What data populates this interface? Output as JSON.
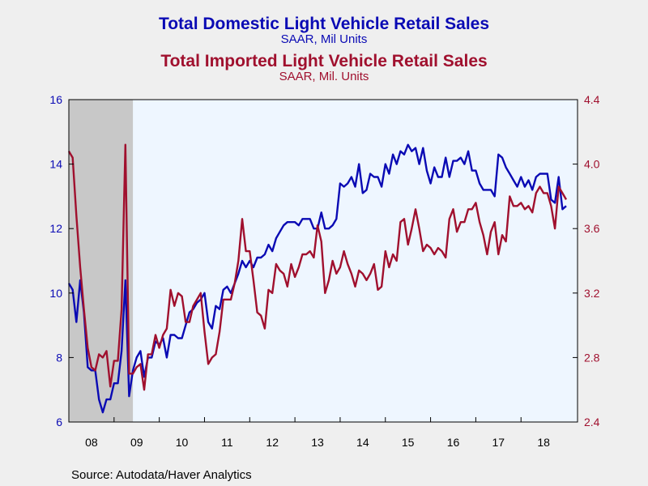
{
  "titles": {
    "domestic_title": "Total Domestic Light Vehicle Retail Sales",
    "domestic_subtitle": "SAAR, Mil Units",
    "imported_title": "Total Imported Light Vehicle Retail Sales",
    "imported_subtitle": "SAAR, Mil. Units"
  },
  "source": "Source:  Autodata/Haver Analytics",
  "colors": {
    "domestic": "#0a0ab4",
    "imported": "#a0102e",
    "plot_bg": "#eef6ff",
    "recession": "#c8c8c8",
    "page_bg": "#efefef"
  },
  "chart_data": {
    "type": "line",
    "left_axis": {
      "series": "domestic",
      "ylim": [
        6,
        16
      ],
      "ticks": [
        "6",
        "8",
        "10",
        "12",
        "14",
        "16"
      ]
    },
    "right_axis": {
      "series": "imported",
      "ylim": [
        2.4,
        4.4
      ],
      "ticks": [
        "2.4",
        "2.8",
        "3.2",
        "3.6",
        "4.0",
        "4.4"
      ]
    },
    "x_ticks": [
      "08",
      "09",
      "10",
      "11",
      "12",
      "13",
      "14",
      "15",
      "16",
      "17",
      "18"
    ],
    "x_range": [
      "2008-01",
      "2019-04"
    ],
    "recession_shading": [
      "2008-01",
      "2009-06"
    ],
    "grid": false,
    "series": [
      {
        "key": "domestic",
        "name": "Total Domestic Light Vehicle Retail Sales",
        "axis": "left",
        "start": "2008-01",
        "values": [
          10.3,
          10.1,
          9.1,
          10.4,
          9.4,
          7.7,
          7.6,
          7.6,
          6.7,
          6.3,
          6.7,
          6.7,
          7.2,
          7.2,
          8.2,
          10.4,
          6.8,
          7.6,
          8.0,
          8.2,
          7.4,
          8.0,
          8.0,
          8.5,
          8.4,
          8.6,
          8.0,
          8.7,
          8.7,
          8.6,
          8.6,
          9.0,
          9.4,
          9.5,
          9.7,
          9.8,
          10.0,
          9.1,
          8.9,
          9.6,
          9.5,
          10.1,
          10.2,
          10.0,
          10.3,
          10.6,
          11.0,
          10.8,
          11.0,
          10.8,
          11.1,
          11.1,
          11.2,
          11.5,
          11.3,
          11.7,
          11.9,
          12.1,
          12.2,
          12.2,
          12.2,
          12.1,
          12.3,
          12.3,
          12.3,
          12.0,
          12.0,
          12.5,
          12.0,
          12.0,
          12.1,
          12.3,
          13.4,
          13.3,
          13.4,
          13.6,
          13.3,
          14.0,
          13.1,
          13.2,
          13.7,
          13.6,
          13.6,
          13.3,
          14.0,
          13.7,
          14.3,
          14.0,
          14.4,
          14.3,
          14.6,
          14.4,
          14.5,
          14.0,
          14.5,
          13.8,
          13.4,
          13.9,
          13.6,
          13.6,
          14.2,
          13.6,
          14.1,
          14.1,
          14.2,
          14.0,
          14.4,
          13.8,
          13.8,
          13.4,
          13.2,
          13.2,
          13.2,
          13.0,
          14.3,
          14.2,
          13.9,
          13.7,
          13.5,
          13.3,
          13.6,
          13.3,
          13.5,
          13.2,
          13.6,
          13.7,
          13.7,
          13.7,
          12.9,
          12.8,
          13.6,
          12.6,
          12.7
        ]
      },
      {
        "key": "imported",
        "name": "Total Imported Light Vehicle Retail Sales",
        "axis": "right",
        "start": "2008-01",
        "values": [
          4.08,
          4.04,
          3.68,
          3.36,
          3.1,
          2.86,
          2.74,
          2.72,
          2.82,
          2.8,
          2.84,
          2.62,
          2.78,
          2.78,
          3.1,
          4.12,
          2.7,
          2.7,
          2.74,
          2.76,
          2.6,
          2.82,
          2.82,
          2.94,
          2.86,
          2.94,
          2.98,
          3.22,
          3.12,
          3.2,
          3.18,
          3.02,
          3.02,
          3.12,
          3.16,
          3.2,
          2.96,
          2.76,
          2.8,
          2.82,
          2.96,
          3.16,
          3.16,
          3.16,
          3.26,
          3.4,
          3.66,
          3.46,
          3.46,
          3.28,
          3.08,
          3.06,
          2.98,
          3.22,
          3.2,
          3.38,
          3.34,
          3.32,
          3.24,
          3.38,
          3.3,
          3.36,
          3.44,
          3.44,
          3.46,
          3.42,
          3.62,
          3.52,
          3.2,
          3.28,
          3.4,
          3.32,
          3.36,
          3.46,
          3.38,
          3.32,
          3.24,
          3.34,
          3.32,
          3.28,
          3.32,
          3.38,
          3.22,
          3.24,
          3.46,
          3.36,
          3.44,
          3.4,
          3.64,
          3.66,
          3.5,
          3.6,
          3.72,
          3.6,
          3.46,
          3.5,
          3.48,
          3.44,
          3.48,
          3.46,
          3.42,
          3.66,
          3.72,
          3.58,
          3.64,
          3.64,
          3.72,
          3.72,
          3.76,
          3.64,
          3.56,
          3.44,
          3.58,
          3.64,
          3.44,
          3.56,
          3.52,
          3.8,
          3.74,
          3.74,
          3.76,
          3.72,
          3.74,
          3.7,
          3.82,
          3.86,
          3.82,
          3.82,
          3.74,
          3.6,
          3.86,
          3.82,
          3.78
        ]
      }
    ]
  }
}
